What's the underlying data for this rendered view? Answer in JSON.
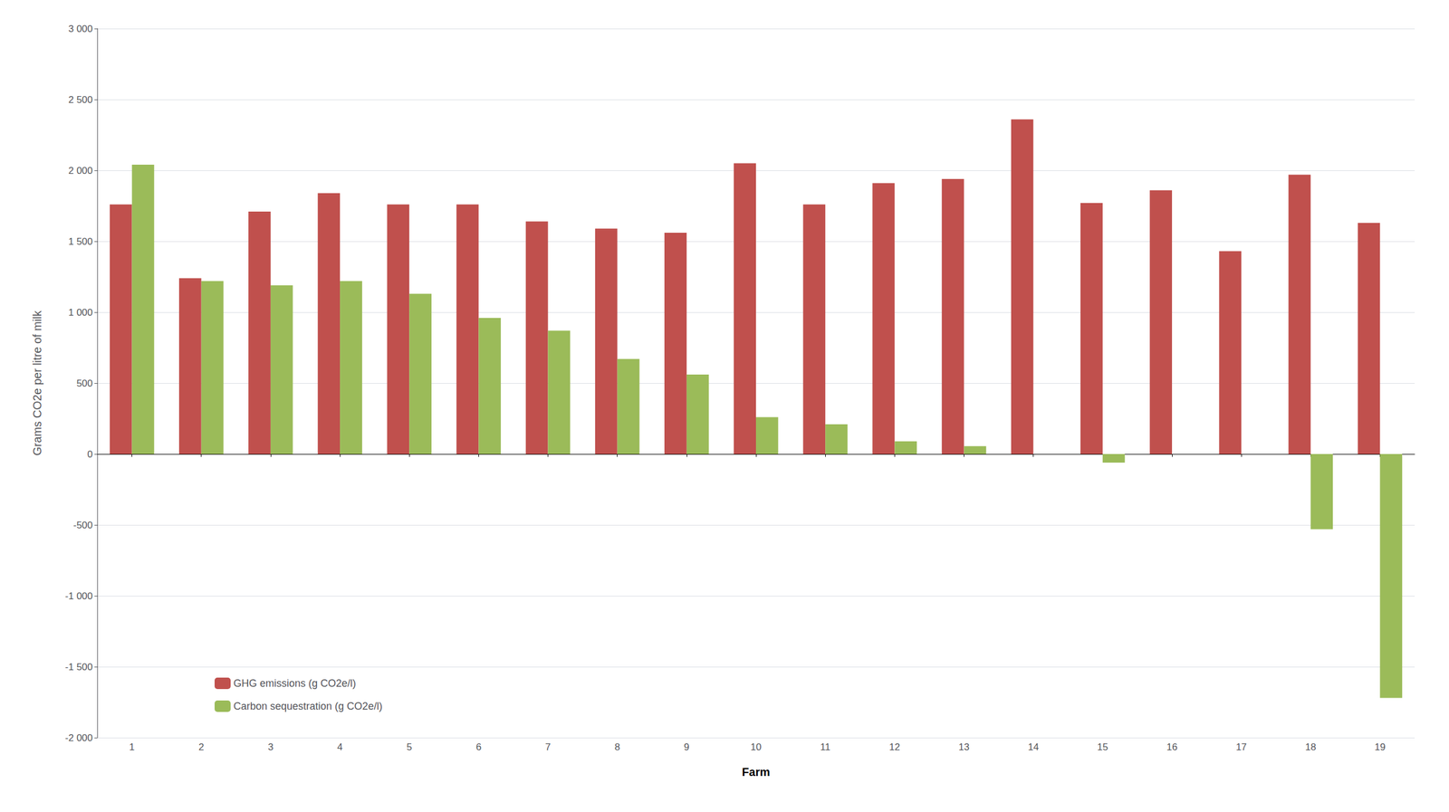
{
  "chart_data": {
    "type": "bar",
    "xlabel": "Farm",
    "ylabel": "Grams CO2e per litre of milk",
    "categories": [
      "1",
      "2",
      "3",
      "4",
      "5",
      "6",
      "7",
      "8",
      "9",
      "10",
      "11",
      "12",
      "13",
      "14",
      "15",
      "16",
      "17",
      "18",
      "19"
    ],
    "series": [
      {
        "name": "GHG emissions (g CO2e/l)",
        "color": "#C0504D",
        "values": [
          1760,
          1240,
          1710,
          1840,
          1760,
          1760,
          1640,
          1590,
          1560,
          2050,
          1760,
          1910,
          1940,
          2360,
          1770,
          1860,
          1430,
          1970,
          1630
        ]
      },
      {
        "name": "Carbon sequestration (g CO2e/l)",
        "color": "#9BBB59",
        "values": [
          2040,
          1220,
          1190,
          1220,
          1130,
          960,
          870,
          670,
          560,
          260,
          210,
          90,
          55,
          0,
          -60,
          0,
          0,
          -530,
          -1720
        ]
      }
    ],
    "ylim": [
      -2000,
      3000
    ],
    "yticks": [
      {
        "value": -2000,
        "label": "-2 000"
      },
      {
        "value": -1500,
        "label": "-1 500"
      },
      {
        "value": -1000,
        "label": "-1 000"
      },
      -500,
      0,
      500,
      {
        "value": 1000,
        "label": "1 000"
      },
      {
        "value": 1500,
        "label": "1 500"
      },
      {
        "value": 2000,
        "label": "2 000"
      },
      {
        "value": 2500,
        "label": "2 500"
      },
      {
        "value": 3000,
        "label": "3 000"
      }
    ],
    "grid": true,
    "legend": "lower left"
  }
}
